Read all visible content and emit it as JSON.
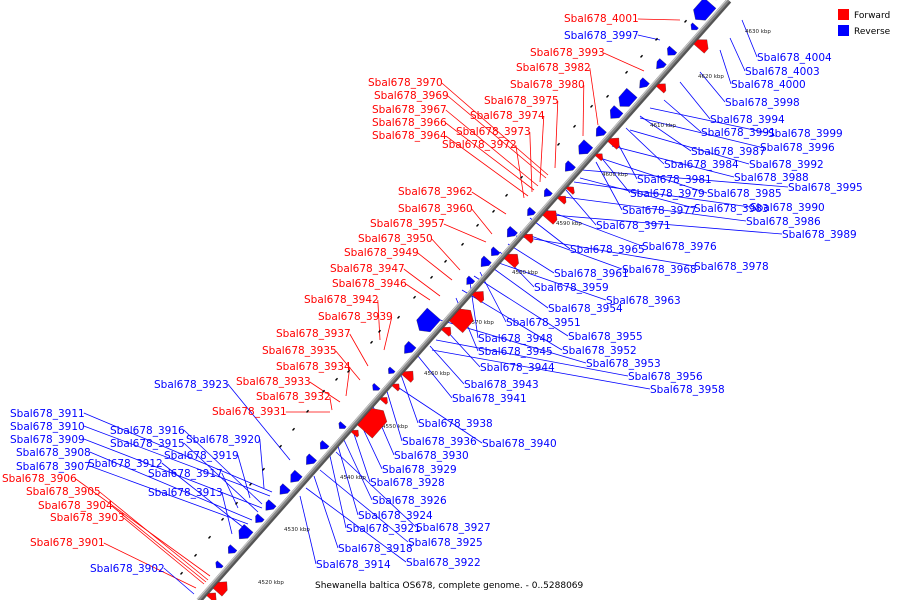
{
  "caption": "Shewanella baltica OS678, complete genome. - 0..5288069",
  "legend": {
    "forward": "Forward",
    "reverse": "Reverse"
  },
  "colors": {
    "forward": "#ff0000",
    "reverse": "#0000ff",
    "backbone": "#888888"
  },
  "ticks": [
    "4520 kbp",
    "4530 kbp",
    "4540 kbp",
    "4550 kbp",
    "4560 kbp",
    "4570 kbp",
    "4580 kbp",
    "4590 kbp",
    "4600 kbp",
    "4610 kbp",
    "4620 kbp",
    "4630 kbp"
  ],
  "forward_labels": [
    "Sbal678_4001",
    "Sbal678_3993",
    "Sbal678_3982",
    "Sbal678_3980",
    "Sbal678_3970",
    "Sbal678_3975",
    "Sbal678_3969",
    "Sbal678_3974",
    "Sbal678_3967",
    "Sbal678_3966",
    "Sbal678_3973",
    "Sbal678_3964",
    "Sbal678_3972",
    "Sbal678_3962",
    "Sbal678_3960",
    "Sbal678_3957",
    "Sbal678_3950",
    "Sbal678_3949",
    "Sbal678_3947",
    "Sbal678_3946",
    "Sbal678_3942",
    "Sbal678_3939",
    "Sbal678_3937",
    "Sbal678_3935",
    "Sbal678_3934",
    "Sbal678_3933",
    "Sbal678_3932",
    "Sbal678_3931",
    "Sbal678_3906",
    "Sbal678_3905",
    "Sbal678_3904",
    "Sbal678_3903",
    "Sbal678_3901"
  ],
  "reverse_labels": [
    "Sbal678_3997",
    "Sbal678_4004",
    "Sbal678_4003",
    "Sbal678_4000",
    "Sbal678_3998",
    "Sbal678_3994",
    "Sbal678_3991",
    "Sbal678_3999",
    "Sbal678_3987",
    "Sbal678_3996",
    "Sbal678_3984",
    "Sbal678_3992",
    "Sbal678_3981",
    "Sbal678_3988",
    "Sbal678_3979",
    "Sbal678_3985",
    "Sbal678_3995",
    "Sbal678_3977",
    "Sbal678_3983",
    "Sbal678_3990",
    "Sbal678_3971",
    "Sbal678_3986",
    "Sbal678_3976",
    "Sbal678_3989",
    "Sbal678_3965",
    "Sbal678_3968",
    "Sbal678_3978",
    "Sbal678_3961",
    "Sbal678_3959",
    "Sbal678_3963",
    "Sbal678_3954",
    "Sbal678_3951",
    "Sbal678_3955",
    "Sbal678_3948",
    "Sbal678_3952",
    "Sbal678_3945",
    "Sbal678_3953",
    "Sbal678_3944",
    "Sbal678_3956",
    "Sbal678_3923",
    "Sbal678_3943",
    "Sbal678_3958",
    "Sbal678_3941",
    "Sbal678_3911",
    "Sbal678_3910",
    "Sbal678_3916",
    "Sbal678_3938",
    "Sbal678_3909",
    "Sbal678_3915",
    "Sbal678_3920",
    "Sbal678_3936",
    "Sbal678_3940",
    "Sbal678_3908",
    "Sbal678_3919",
    "Sbal678_3930",
    "Sbal678_3907",
    "Sbal678_3912",
    "Sbal678_3917",
    "Sbal678_3929",
    "Sbal678_3928",
    "Sbal678_3913",
    "Sbal678_3926",
    "Sbal678_3924",
    "Sbal678_3921",
    "Sbal678_3927",
    "Sbal678_3925",
    "Sbal678_3918",
    "Sbal678_3914",
    "Sbal678_3922",
    "Sbal678_3902"
  ]
}
